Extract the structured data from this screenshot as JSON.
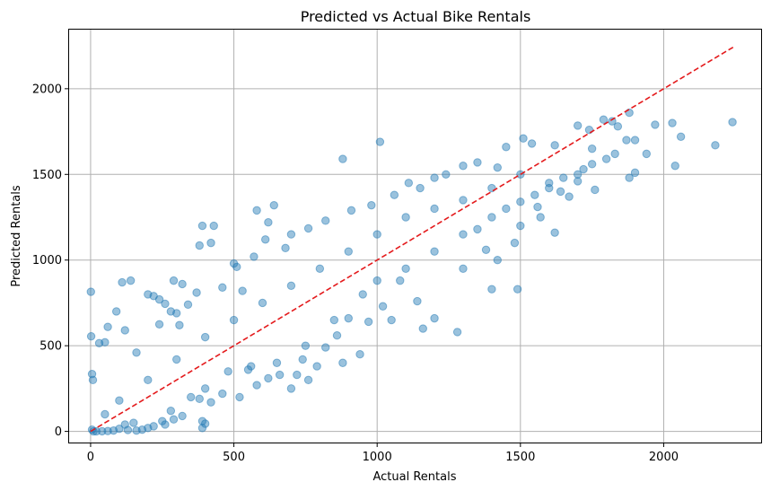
{
  "chart_data": {
    "type": "scatter",
    "title": "Predicted vs Actual Bike Rentals",
    "xlabel": "Actual Rentals",
    "ylabel": "Predicted Rentals",
    "xlim": [
      -75,
      2340
    ],
    "ylim": [
      -65,
      2345
    ],
    "xticks": [
      0,
      500,
      1000,
      1500,
      2000
    ],
    "yticks": [
      0,
      500,
      1000,
      1500,
      2000
    ],
    "grid": true,
    "colors": {
      "points": "#1f77b4",
      "reference_line": "#e41a1c",
      "grid": "#b0b0b0"
    },
    "reference_line": {
      "label": "",
      "style": "dashed",
      "x": [
        0,
        2243
      ],
      "y": [
        0,
        2243
      ]
    },
    "series": [
      {
        "points": [
          [
            1,
            815
          ],
          [
            2,
            555
          ],
          [
            5,
            335
          ],
          [
            8,
            300
          ],
          [
            30,
            515
          ],
          [
            50,
            520
          ],
          [
            60,
            610
          ],
          [
            90,
            700
          ],
          [
            110,
            870
          ],
          [
            140,
            880
          ],
          [
            120,
            590
          ],
          [
            160,
            460
          ],
          [
            200,
            800
          ],
          [
            220,
            790
          ],
          [
            240,
            770
          ],
          [
            240,
            625
          ],
          [
            260,
            745
          ],
          [
            280,
            700
          ],
          [
            290,
            880
          ],
          [
            300,
            690
          ],
          [
            320,
            860
          ],
          [
            310,
            620
          ],
          [
            340,
            740
          ],
          [
            370,
            810
          ],
          [
            380,
            1085
          ],
          [
            390,
            1200
          ],
          [
            420,
            1100
          ],
          [
            430,
            1200
          ],
          [
            460,
            840
          ],
          [
            500,
            980
          ],
          [
            510,
            960
          ],
          [
            530,
            820
          ],
          [
            570,
            1020
          ],
          [
            580,
            1290
          ],
          [
            620,
            1220
          ],
          [
            640,
            1320
          ],
          [
            610,
            1120
          ],
          [
            680,
            1070
          ],
          [
            700,
            1150
          ],
          [
            760,
            1185
          ],
          [
            820,
            1230
          ],
          [
            880,
            1590
          ],
          [
            910,
            1290
          ],
          [
            980,
            1320
          ],
          [
            1010,
            1690
          ],
          [
            1060,
            1380
          ],
          [
            1110,
            1450
          ],
          [
            1150,
            1420
          ],
          [
            1200,
            1480
          ],
          [
            1240,
            1500
          ],
          [
            1300,
            1550
          ],
          [
            1350,
            1570
          ],
          [
            1420,
            1540
          ],
          [
            1450,
            1660
          ],
          [
            1510,
            1710
          ],
          [
            1540,
            1680
          ],
          [
            1620,
            1670
          ],
          [
            1700,
            1785
          ],
          [
            1740,
            1760
          ],
          [
            1790,
            1820
          ],
          [
            1820,
            1810
          ],
          [
            1840,
            1780
          ],
          [
            1870,
            1700
          ],
          [
            1880,
            1860
          ],
          [
            1900,
            1700
          ],
          [
            1970,
            1790
          ],
          [
            2030,
            1800
          ],
          [
            2060,
            1720
          ],
          [
            2040,
            1550
          ],
          [
            2180,
            1670
          ],
          [
            2240,
            1805
          ],
          [
            1640,
            1400
          ],
          [
            1700,
            1460
          ],
          [
            1720,
            1530
          ],
          [
            1760,
            1410
          ],
          [
            1800,
            1590
          ],
          [
            1830,
            1620
          ],
          [
            1880,
            1480
          ],
          [
            1900,
            1510
          ],
          [
            1940,
            1620
          ],
          [
            1750,
            1650
          ],
          [
            1670,
            1370
          ],
          [
            1600,
            1450
          ],
          [
            1560,
            1310
          ],
          [
            1620,
            1160
          ],
          [
            1570,
            1250
          ],
          [
            1500,
            1200
          ],
          [
            1480,
            1100
          ],
          [
            1420,
            1000
          ],
          [
            1400,
            830
          ],
          [
            1490,
            830
          ],
          [
            1380,
            1060
          ],
          [
            1300,
            950
          ],
          [
            1280,
            580
          ],
          [
            1200,
            660
          ],
          [
            1160,
            600
          ],
          [
            1140,
            760
          ],
          [
            1080,
            880
          ],
          [
            1050,
            650
          ],
          [
            1020,
            730
          ],
          [
            970,
            640
          ],
          [
            940,
            450
          ],
          [
            900,
            660
          ],
          [
            860,
            560
          ],
          [
            820,
            490
          ],
          [
            880,
            400
          ],
          [
            790,
            380
          ],
          [
            760,
            300
          ],
          [
            740,
            420
          ],
          [
            700,
            250
          ],
          [
            720,
            330
          ],
          [
            660,
            330
          ],
          [
            620,
            310
          ],
          [
            580,
            270
          ],
          [
            550,
            360
          ],
          [
            520,
            200
          ],
          [
            480,
            350
          ],
          [
            460,
            220
          ],
          [
            420,
            170
          ],
          [
            400,
            250
          ],
          [
            380,
            190
          ],
          [
            350,
            200
          ],
          [
            320,
            90
          ],
          [
            290,
            70
          ],
          [
            260,
            40
          ],
          [
            250,
            60
          ],
          [
            220,
            30
          ],
          [
            200,
            20
          ],
          [
            180,
            10
          ],
          [
            160,
            5
          ],
          [
            150,
            50
          ],
          [
            130,
            8
          ],
          [
            120,
            40
          ],
          [
            100,
            15
          ],
          [
            80,
            5
          ],
          [
            60,
            2
          ],
          [
            40,
            1
          ],
          [
            20,
            0
          ],
          [
            10,
            0
          ],
          [
            5,
            10
          ],
          [
            390,
            60
          ],
          [
            400,
            45
          ],
          [
            390,
            20
          ],
          [
            280,
            120
          ],
          [
            560,
            380
          ],
          [
            650,
            400
          ],
          [
            750,
            500
          ],
          [
            850,
            650
          ],
          [
            950,
            800
          ],
          [
            1000,
            880
          ],
          [
            1100,
            950
          ],
          [
            1200,
            1050
          ],
          [
            1300,
            1150
          ],
          [
            1350,
            1180
          ],
          [
            1400,
            1250
          ],
          [
            1450,
            1300
          ],
          [
            1500,
            1340
          ],
          [
            1550,
            1380
          ],
          [
            1600,
            1420
          ],
          [
            1650,
            1480
          ],
          [
            1700,
            1500
          ],
          [
            1750,
            1560
          ],
          [
            1500,
            1500
          ],
          [
            1400,
            1420
          ],
          [
            1300,
            1350
          ],
          [
            1200,
            1300
          ],
          [
            1100,
            1250
          ],
          [
            1000,
            1150
          ],
          [
            900,
            1050
          ],
          [
            800,
            950
          ],
          [
            700,
            850
          ],
          [
            600,
            750
          ],
          [
            500,
            650
          ],
          [
            400,
            550
          ],
          [
            300,
            420
          ],
          [
            200,
            300
          ],
          [
            100,
            180
          ],
          [
            50,
            100
          ]
        ]
      }
    ]
  }
}
